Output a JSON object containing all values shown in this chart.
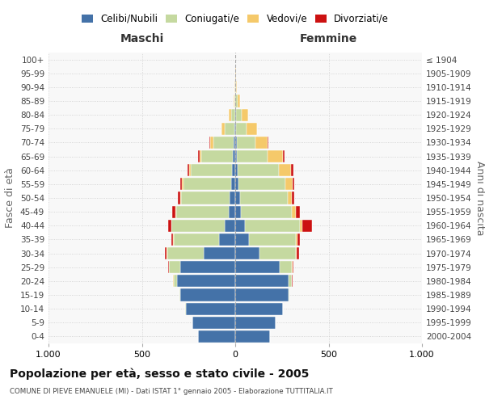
{
  "age_groups": [
    "0-4",
    "5-9",
    "10-14",
    "15-19",
    "20-24",
    "25-29",
    "30-34",
    "35-39",
    "40-44",
    "45-49",
    "50-54",
    "55-59",
    "60-64",
    "65-69",
    "70-74",
    "75-79",
    "80-84",
    "85-89",
    "90-94",
    "95-99",
    "100+"
  ],
  "birth_years": [
    "2000-2004",
    "1995-1999",
    "1990-1994",
    "1985-1989",
    "1980-1984",
    "1975-1979",
    "1970-1974",
    "1965-1969",
    "1960-1964",
    "1955-1959",
    "1950-1954",
    "1945-1949",
    "1940-1944",
    "1935-1939",
    "1930-1934",
    "1925-1929",
    "1920-1924",
    "1915-1919",
    "1910-1914",
    "1905-1909",
    "≤ 1904"
  ],
  "colors": {
    "celibi": "#4472a8",
    "coniugati": "#c5d9a0",
    "vedovi": "#f5c96a",
    "divorziati": "#cc1111"
  },
  "maschi": {
    "celibi": [
      200,
      230,
      265,
      295,
      310,
      295,
      170,
      85,
      55,
      35,
      30,
      22,
      18,
      12,
      10,
      5,
      2,
      0,
      0,
      0,
      0
    ],
    "coniugati": [
      0,
      0,
      2,
      5,
      20,
      60,
      195,
      245,
      285,
      280,
      260,
      255,
      220,
      170,
      105,
      50,
      18,
      5,
      2,
      0,
      0
    ],
    "vedovi": [
      0,
      0,
      0,
      0,
      2,
      2,
      2,
      2,
      3,
      5,
      5,
      8,
      10,
      10,
      20,
      20,
      15,
      5,
      2,
      0,
      0
    ],
    "divorziati": [
      0,
      0,
      0,
      0,
      3,
      3,
      10,
      12,
      15,
      18,
      12,
      10,
      8,
      5,
      2,
      0,
      0,
      0,
      0,
      0,
      0
    ]
  },
  "femmine": {
    "nubili": [
      185,
      215,
      255,
      285,
      285,
      240,
      130,
      75,
      50,
      30,
      25,
      18,
      15,
      10,
      8,
      5,
      3,
      2,
      0,
      0,
      0
    ],
    "coniugate": [
      0,
      0,
      2,
      5,
      18,
      65,
      195,
      250,
      295,
      275,
      255,
      250,
      220,
      165,
      100,
      55,
      30,
      10,
      5,
      2,
      0
    ],
    "vedove": [
      0,
      0,
      0,
      0,
      2,
      3,
      5,
      8,
      15,
      20,
      25,
      40,
      65,
      80,
      65,
      55,
      35,
      15,
      5,
      2,
      0
    ],
    "divorziate": [
      0,
      0,
      0,
      0,
      2,
      3,
      10,
      15,
      50,
      22,
      12,
      10,
      10,
      8,
      3,
      2,
      0,
      0,
      0,
      0,
      0
    ]
  },
  "xlim": 1000,
  "title": "Popolazione per età, sesso e stato civile - 2005",
  "subtitle": "COMUNE DI PIEVE EMANUELE (MI) - Dati ISTAT 1° gennaio 2005 - Elaborazione TUTTITALIA.IT",
  "ylabel_left": "Fasce di età",
  "ylabel_right": "Anni di nascita",
  "maschi_label": "Maschi",
  "femmine_label": "Femmine"
}
